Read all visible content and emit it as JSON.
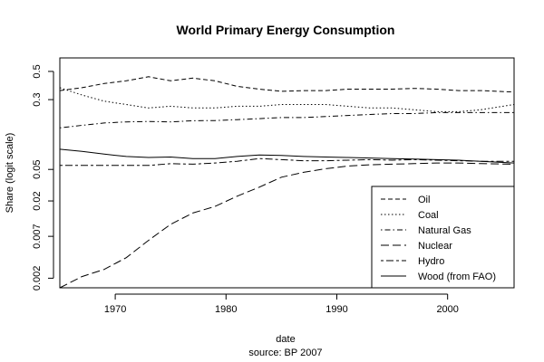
{
  "chart_data": {
    "type": "line",
    "title": "World Primary Energy Consumption",
    "xlabel": "date",
    "caption": "source: BP 2007",
    "ylabel": "Share (logit scale)",
    "y_scale": "logit",
    "xlim": [
      1965,
      2006
    ],
    "ylim": [
      0.0015,
      0.6
    ],
    "x_ticks": [
      1970,
      1980,
      1990,
      2000
    ],
    "y_ticks": [
      0.002,
      0.007,
      0.02,
      0.05,
      0.3,
      0.5
    ],
    "y_tick_labels": [
      "0.002",
      "0.007",
      "0.02",
      "0.05",
      "0.3",
      "0.5"
    ],
    "grid": false,
    "legend_position": "bottom-right",
    "series": [
      {
        "name": "Oil",
        "dash": "dashed",
        "x": [
          1965,
          1967,
          1969,
          1971,
          1973,
          1975,
          1977,
          1979,
          1981,
          1983,
          1985,
          1987,
          1989,
          1991,
          1993,
          1995,
          1997,
          1999,
          2001,
          2003,
          2006
        ],
        "y": [
          0.36,
          0.38,
          0.41,
          0.43,
          0.46,
          0.43,
          0.45,
          0.43,
          0.39,
          0.37,
          0.355,
          0.36,
          0.36,
          0.37,
          0.37,
          0.37,
          0.375,
          0.37,
          0.36,
          0.36,
          0.35
        ]
      },
      {
        "name": "Coal",
        "dash": "dotted",
        "x": [
          1965,
          1967,
          1969,
          1971,
          1973,
          1975,
          1977,
          1979,
          1981,
          1983,
          1985,
          1987,
          1989,
          1991,
          1993,
          1995,
          1997,
          1999,
          2001,
          2003,
          2006
        ],
        "y": [
          0.38,
          0.33,
          0.29,
          0.27,
          0.25,
          0.26,
          0.25,
          0.25,
          0.26,
          0.26,
          0.27,
          0.27,
          0.27,
          0.26,
          0.25,
          0.25,
          0.24,
          0.23,
          0.23,
          0.24,
          0.27
        ]
      },
      {
        "name": "Natural Gas",
        "dash": "dotdash",
        "x": [
          1965,
          1967,
          1969,
          1971,
          1973,
          1975,
          1977,
          1979,
          1981,
          1983,
          1985,
          1987,
          1989,
          1991,
          1993,
          1995,
          1997,
          1999,
          2001,
          2003,
          2006
        ],
        "y": [
          0.155,
          0.165,
          0.175,
          0.18,
          0.182,
          0.18,
          0.185,
          0.186,
          0.19,
          0.195,
          0.2,
          0.2,
          0.205,
          0.21,
          0.215,
          0.22,
          0.22,
          0.225,
          0.225,
          0.225,
          0.225
        ]
      },
      {
        "name": "Nuclear",
        "dash": "longdash",
        "x": [
          1965,
          1967,
          1969,
          1971,
          1973,
          1975,
          1977,
          1979,
          1981,
          1983,
          1985,
          1987,
          1989,
          1991,
          1993,
          1995,
          1997,
          1999,
          2001,
          2003,
          2006
        ],
        "y": [
          0.0015,
          0.0021,
          0.0026,
          0.0037,
          0.0062,
          0.01,
          0.014,
          0.017,
          0.023,
          0.03,
          0.04,
          0.046,
          0.051,
          0.055,
          0.057,
          0.058,
          0.059,
          0.06,
          0.06,
          0.059,
          0.058
        ]
      },
      {
        "name": "Hydro",
        "dash": "twodash",
        "x": [
          1965,
          1967,
          1969,
          1971,
          1973,
          1975,
          1977,
          1979,
          1981,
          1983,
          1985,
          1987,
          1989,
          1991,
          1993,
          1995,
          1997,
          1999,
          2001,
          2003,
          2006
        ],
        "y": [
          0.056,
          0.056,
          0.056,
          0.056,
          0.056,
          0.059,
          0.058,
          0.06,
          0.063,
          0.068,
          0.066,
          0.064,
          0.064,
          0.065,
          0.066,
          0.065,
          0.066,
          0.065,
          0.064,
          0.063,
          0.063
        ]
      },
      {
        "name": "Wood (from FAO)",
        "dash": "solid",
        "x": [
          1965,
          1967,
          1969,
          1971,
          1973,
          1975,
          1977,
          1979,
          1981,
          1983,
          1985,
          1987,
          1989,
          1991,
          1993,
          1995,
          1997,
          1999,
          2001,
          2003,
          2006
        ],
        "y": [
          0.088,
          0.083,
          0.077,
          0.072,
          0.07,
          0.071,
          0.068,
          0.068,
          0.072,
          0.075,
          0.074,
          0.072,
          0.071,
          0.07,
          0.069,
          0.068,
          0.067,
          0.066,
          0.065,
          0.063,
          0.06
        ]
      }
    ]
  }
}
